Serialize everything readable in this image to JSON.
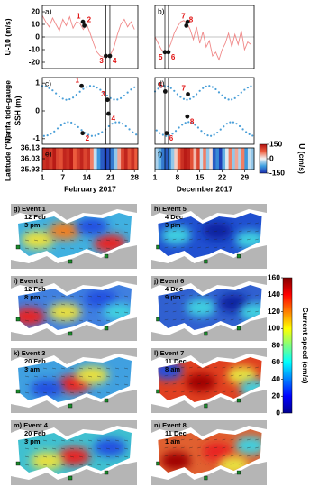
{
  "chart_data": [
    {
      "type": "line",
      "title": "a)",
      "ylabel": "U-10 (m/s)",
      "xlim": [
        1,
        29
      ],
      "ylim": [
        -25,
        25
      ],
      "yticks": [
        20,
        10,
        0,
        -10,
        -20
      ],
      "hlines": [
        0
      ],
      "vlines": [
        19.6,
        20.8
      ],
      "series": [
        {
          "color": "#f08888",
          "x": [
            1,
            2,
            3,
            4,
            5,
            6,
            7,
            8,
            9,
            10,
            11,
            12,
            13,
            14,
            15,
            16,
            17,
            18,
            19,
            20,
            21,
            22,
            23,
            24,
            25,
            26,
            27,
            28
          ],
          "values": [
            17,
            12,
            8,
            15,
            10,
            5,
            14,
            9,
            16,
            7,
            12,
            11,
            6,
            10,
            3,
            -5,
            -12,
            -15,
            -16,
            -15,
            -14,
            -8,
            2,
            10,
            14,
            8,
            12,
            6
          ]
        }
      ],
      "events": {
        "x": [
          12.9,
          13.3,
          19.6,
          20.8
        ],
        "values": [
          12,
          9,
          -15,
          -15
        ],
        "labels": [
          "1",
          "2",
          "3",
          "4"
        ]
      }
    },
    {
      "type": "line",
      "title": "b)",
      "xlim": [
        1,
        32
      ],
      "ylim": [
        -25,
        25
      ],
      "hlines": [
        0
      ],
      "vlines": [
        4.1,
        5.2
      ],
      "series": [
        {
          "color": "#f08888",
          "x": [
            1,
            2,
            3,
            4,
            5,
            6,
            7,
            8,
            9,
            10,
            11,
            12,
            13,
            14,
            15,
            16,
            17,
            18,
            19,
            20,
            21,
            22,
            23,
            24,
            25,
            26,
            27,
            28,
            29,
            30,
            31
          ],
          "values": [
            0,
            -5,
            -10,
            -12,
            -11,
            -5,
            3,
            8,
            12,
            13,
            11,
            6,
            -2,
            8,
            -5,
            4,
            -8,
            -3,
            -15,
            -12,
            -18,
            -10,
            -5,
            3,
            -8,
            2,
            -6,
            5,
            -10,
            -4,
            -6
          ]
        }
      ],
      "events": {
        "x": [
          4.1,
          5.2,
          11.2,
          10.8
        ],
        "values": [
          -12,
          -12,
          12,
          9
        ],
        "labels": [
          "5",
          "6",
          "7",
          "8"
        ]
      }
    },
    {
      "type": "scatter",
      "title": "c)",
      "ylabel": "SSH (m)",
      "sublabel": "Tarifa tide-gauge",
      "xlim": [
        1,
        29
      ],
      "ylim": [
        -1.2,
        1.2
      ],
      "yticks": [
        1,
        0,
        -1
      ],
      "vlines": [
        19.6,
        20.8
      ],
      "series": [
        {
          "color": "#4a9fd8",
          "x": [
            1,
            1.5,
            2,
            2.5,
            3,
            3.5,
            4,
            4.5,
            5,
            5.5,
            6,
            6.5,
            7,
            7.5,
            8,
            8.5,
            9,
            9.5,
            10,
            10.5,
            11,
            11.5,
            12,
            12.5,
            13,
            13.5,
            14,
            14.5,
            15,
            15.5,
            16,
            16.5,
            17,
            17.5,
            18,
            18.5,
            19,
            19.5,
            20,
            20.5,
            21,
            21.5,
            22,
            22.5,
            23,
            23.5,
            24,
            24.5,
            25,
            25.5,
            26,
            26.5,
            27,
            27.5,
            28,
            28.5
          ],
          "values": [
            0.9,
            -0.9,
            0.88,
            -0.88,
            0.82,
            -0.82,
            0.74,
            -0.74,
            0.63,
            -0.63,
            0.52,
            -0.52,
            0.44,
            -0.44,
            0.4,
            -0.4,
            0.42,
            -0.42,
            0.48,
            -0.48,
            0.58,
            -0.58,
            0.69,
            -0.69,
            0.79,
            -0.79,
            0.86,
            -0.86,
            0.9,
            -0.9,
            0.89,
            -0.89,
            0.84,
            -0.84,
            0.76,
            -0.76,
            0.66,
            -0.66,
            0.55,
            -0.55,
            0.46,
            -0.46,
            0.41,
            -0.41,
            0.41,
            -0.41,
            0.46,
            -0.46,
            0.55,
            -0.55,
            0.66,
            -0.66,
            0.77,
            -0.77,
            0.85,
            -0.85
          ]
        }
      ],
      "events": {
        "x": [
          12.5,
          12.8,
          20.1,
          20.4
        ],
        "values": [
          0.9,
          -0.8,
          0.4,
          -0.1
        ],
        "labels": [
          "1",
          "2",
          "3",
          "4"
        ]
      }
    },
    {
      "type": "scatter",
      "title": "d)",
      "xlim": [
        1,
        32
      ],
      "ylim": [
        -1.2,
        1.2
      ],
      "vlines": [
        4.1,
        5.2
      ],
      "series": [
        {
          "color": "#4a9fd8",
          "x": [
            1,
            1.5,
            2,
            2.5,
            3,
            3.5,
            4,
            4.5,
            5,
            5.5,
            6,
            6.5,
            7,
            7.5,
            8,
            8.5,
            9,
            9.5,
            10,
            10.5,
            11,
            11.5,
            12,
            12.5,
            13,
            13.5,
            14,
            14.5,
            15,
            15.5,
            16,
            16.5,
            17,
            17.5,
            18,
            18.5,
            19,
            19.5,
            20,
            20.5,
            21,
            21.5,
            22,
            22.5,
            23,
            23.5,
            24,
            24.5,
            25,
            25.5,
            26,
            26.5,
            27,
            27.5,
            28,
            28.5,
            29,
            29.5,
            30,
            30.5,
            31,
            31.5
          ],
          "values": [
            0.7,
            -0.7,
            0.8,
            -0.8,
            0.86,
            -0.86,
            0.9,
            -0.9,
            0.88,
            -0.88,
            0.82,
            -0.82,
            0.72,
            -0.72,
            0.6,
            -0.6,
            0.5,
            -0.5,
            0.43,
            -0.43,
            0.4,
            -0.4,
            0.43,
            -0.43,
            0.5,
            -0.5,
            0.6,
            -0.6,
            0.72,
            -0.72,
            0.82,
            -0.82,
            0.88,
            -0.88,
            0.9,
            -0.9,
            0.86,
            -0.86,
            0.78,
            -0.78,
            0.67,
            -0.67,
            0.56,
            -0.56,
            0.46,
            -0.46,
            0.41,
            -0.41,
            0.41,
            -0.41,
            0.46,
            -0.46,
            0.55,
            -0.55,
            0.66,
            -0.66,
            0.76,
            -0.76,
            0.84,
            -0.84,
            0.89,
            -0.89
          ]
        }
      ],
      "events": {
        "x": [
          4.2,
          4.6,
          11.3,
          11.1
        ],
        "values": [
          0.7,
          -0.8,
          0.6,
          -0.2
        ],
        "labels": [
          "5",
          "6",
          "7",
          "8"
        ]
      }
    },
    {
      "type": "heatmap",
      "title": "e)",
      "ylabel": "Latitude (ºN)",
      "xlabel": "February 2017",
      "xlim": [
        1,
        29
      ],
      "xticks": [
        1,
        7,
        14,
        21,
        28
      ],
      "ylim": [
        35.93,
        36.13
      ],
      "yticks": [
        36.13,
        36.03,
        35.93
      ],
      "clim": [
        -150,
        150
      ],
      "vlines": [
        19.6,
        20.8
      ],
      "x": [
        1,
        2,
        3,
        4,
        5,
        6,
        7,
        8,
        9,
        10,
        11,
        12,
        13,
        14,
        15,
        16,
        17,
        18,
        19,
        20,
        21,
        22,
        23,
        24,
        25,
        26,
        27,
        28
      ],
      "values": [
        120,
        130,
        110,
        140,
        100,
        90,
        130,
        120,
        140,
        80,
        110,
        130,
        100,
        120,
        60,
        -20,
        -80,
        -120,
        -140,
        -130,
        -100,
        -40,
        40,
        100,
        130,
        90,
        120,
        80
      ]
    },
    {
      "type": "heatmap",
      "title": "f)",
      "xlabel": "December 2017",
      "xlim": [
        1,
        32
      ],
      "xticks": [
        1,
        8,
        15,
        22,
        29
      ],
      "ylim": [
        35.93,
        36.13
      ],
      "clim": [
        -150,
        150
      ],
      "cticks": [
        150,
        0,
        -150
      ],
      "clabel": "U (cm/s)",
      "vlines": [
        4.1,
        5.2
      ],
      "x": [
        1,
        2,
        3,
        4,
        5,
        6,
        7,
        8,
        9,
        10,
        11,
        12,
        13,
        14,
        15,
        16,
        17,
        18,
        19,
        20,
        21,
        22,
        23,
        24,
        25,
        26,
        27,
        28,
        29,
        30,
        31
      ],
      "values": [
        -30,
        -60,
        -100,
        -120,
        -90,
        -40,
        20,
        80,
        120,
        140,
        130,
        90,
        30,
        100,
        -20,
        60,
        -40,
        10,
        -120,
        -90,
        -140,
        -60,
        -10,
        60,
        -40,
        40,
        -30,
        60,
        -80,
        -20,
        -40
      ]
    }
  ],
  "maps": {
    "panels": [
      {
        "label": "g) Event 1",
        "date": "12 Feb",
        "time": "3 pm"
      },
      {
        "label": "h) Event 5",
        "date": "4 Dec",
        "time": "3 pm"
      },
      {
        "label": "i) Event 2",
        "date": "12 Feb",
        "time": "8 pm"
      },
      {
        "label": "j) Event 6",
        "date": "4 Dec",
        "time": "9 pm"
      },
      {
        "label": "k) Event 3",
        "date": "20 Feb",
        "time": "3 am"
      },
      {
        "label": "l) Event 7",
        "date": "11 Dec",
        "time": "8 am"
      },
      {
        "label": "m) Event 4",
        "date": "20 Feb",
        "time": "3 pm"
      },
      {
        "label": "n) Event 8",
        "date": "11 Dec",
        "time": "1 am"
      }
    ],
    "colorbar": {
      "label": "Current speed (cm/s)",
      "lim": [
        0,
        160
      ],
      "ticks": [
        0,
        20,
        40,
        60,
        80,
        100,
        120,
        140,
        160
      ]
    }
  }
}
